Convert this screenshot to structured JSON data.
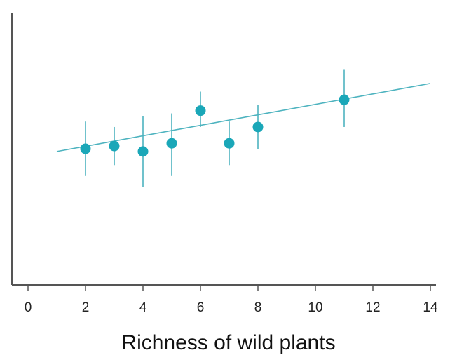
{
  "chart_data": {
    "type": "scatter",
    "title": "",
    "xlabel": "Richness of wild plants",
    "ylabel": "",
    "xlim": [
      0,
      14
    ],
    "x_ticks": [
      0,
      2,
      4,
      6,
      8,
      10,
      12,
      14
    ],
    "y_ticks_shown": false,
    "grid": false,
    "legend": "none",
    "colors": {
      "points": "#1aa7b8",
      "fit_line": "#4db3bf",
      "axis": "#555555"
    },
    "points": [
      {
        "x": 2,
        "y": 0.5,
        "err_low": 0.1,
        "err_high": 0.1
      },
      {
        "x": 3,
        "y": 0.51,
        "err_low": 0.07,
        "err_high": 0.07
      },
      {
        "x": 4,
        "y": 0.49,
        "err_low": 0.13,
        "err_high": 0.13
      },
      {
        "x": 5,
        "y": 0.52,
        "err_low": 0.12,
        "err_high": 0.11
      },
      {
        "x": 6,
        "y": 0.64,
        "err_low": 0.06,
        "err_high": 0.07
      },
      {
        "x": 7,
        "y": 0.52,
        "err_low": 0.08,
        "err_high": 0.08
      },
      {
        "x": 8,
        "y": 0.58,
        "err_low": 0.08,
        "err_high": 0.08
      },
      {
        "x": 11,
        "y": 0.68,
        "err_low": 0.1,
        "err_high": 0.11
      }
    ],
    "fit_line": {
      "x": [
        1,
        14
      ],
      "y": [
        0.49,
        0.74
      ]
    }
  }
}
